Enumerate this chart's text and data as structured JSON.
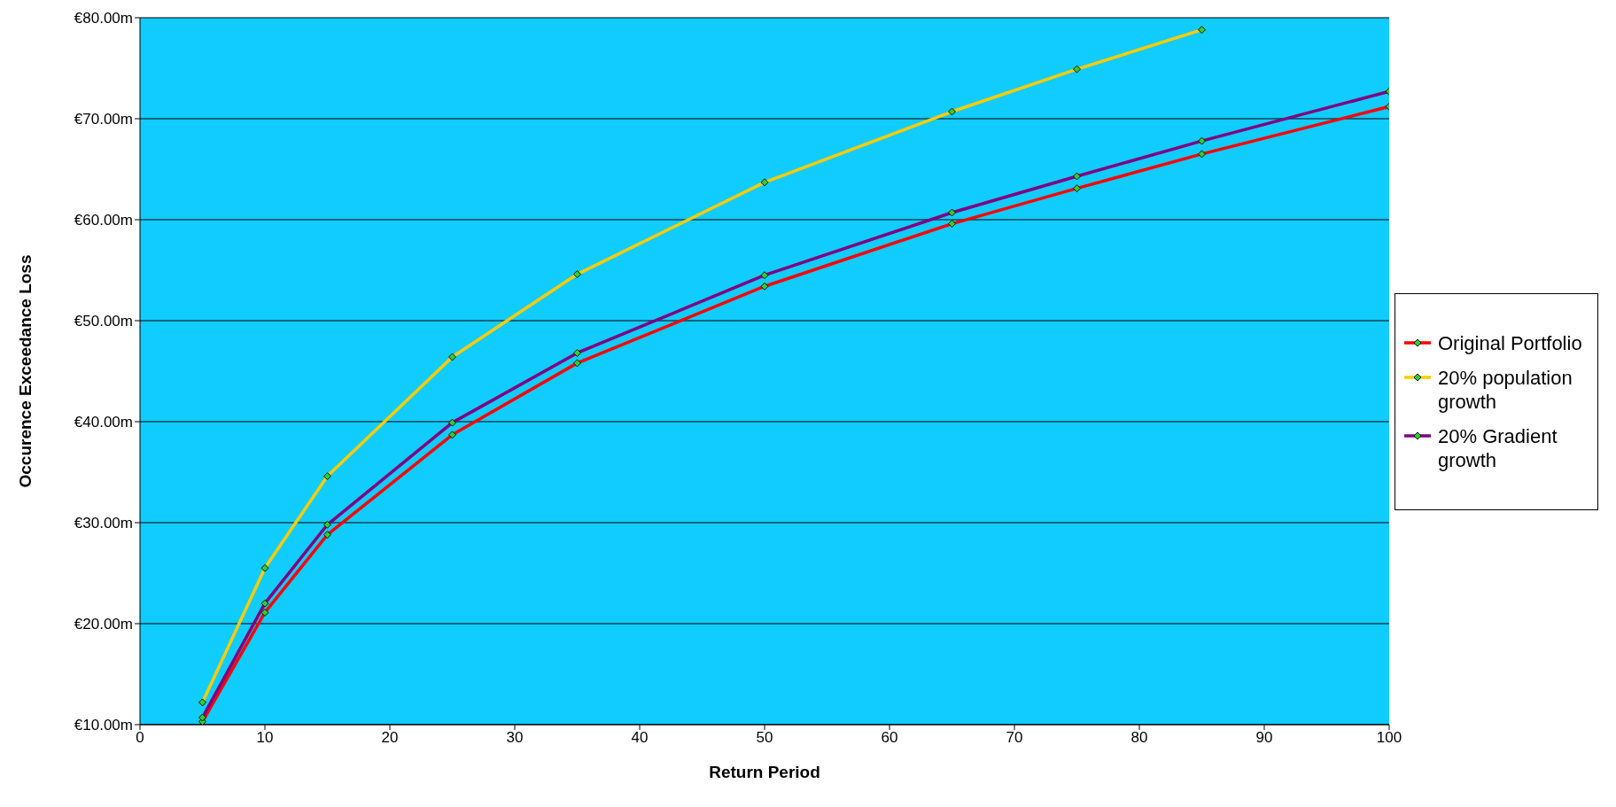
{
  "chart_data": {
    "type": "line",
    "xlabel": "Return Period",
    "ylabel": "Occurence Exceedance Loss",
    "x": [
      5,
      10,
      15,
      25,
      35,
      50,
      65,
      75,
      85,
      100
    ],
    "series": [
      {
        "name": "Original Portfolio",
        "color": "#ff0000",
        "values": [
          10.3,
          21.1,
          28.8,
          38.7,
          45.8,
          53.4,
          59.6,
          63.1,
          66.5,
          71.2
        ]
      },
      {
        "name": "20% population growth",
        "color": "#ffcc00",
        "values": [
          12.2,
          25.5,
          34.6,
          46.4,
          54.6,
          63.7,
          70.7,
          74.9,
          78.8,
          null
        ]
      },
      {
        "name": "20% Gradient growth",
        "color": "#800080",
        "values": [
          10.7,
          22.0,
          29.8,
          39.9,
          46.8,
          54.5,
          60.7,
          64.3,
          67.8,
          72.7
        ]
      }
    ],
    "xlim": [
      0,
      100
    ],
    "xticks": [
      0,
      10,
      20,
      30,
      40,
      50,
      60,
      70,
      80,
      90,
      100
    ],
    "ylim": [
      10,
      80
    ],
    "yticks": [
      {
        "value": 10,
        "label": "€10.00m"
      },
      {
        "value": 20,
        "label": "€20.00m"
      },
      {
        "value": 30,
        "label": "€30.00m"
      },
      {
        "value": 40,
        "label": "€40.00m"
      },
      {
        "value": 50,
        "label": "€50.00m"
      },
      {
        "value": 60,
        "label": "€60.00m"
      },
      {
        "value": 70,
        "label": "€70.00m"
      },
      {
        "value": 80,
        "label": "€80.00m"
      }
    ],
    "grid": "y",
    "legend": "right",
    "marker": "diamond",
    "line_style": "solid"
  }
}
